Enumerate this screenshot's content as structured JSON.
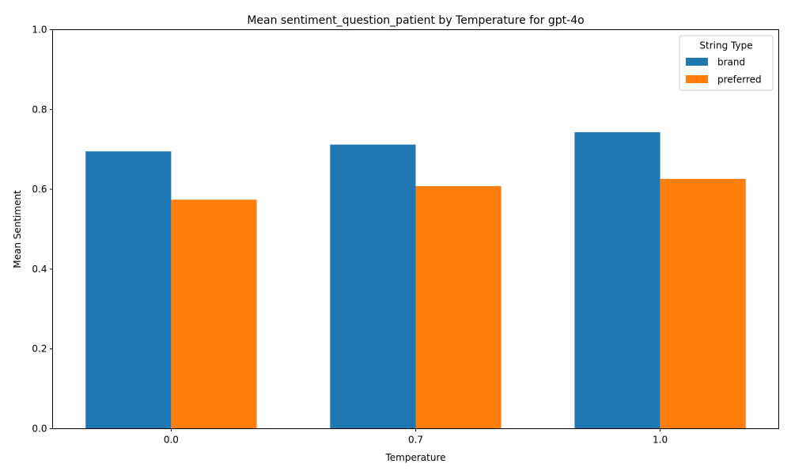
{
  "chart_data": {
    "type": "bar",
    "title": "Mean sentiment_question_patient by Temperature for gpt-4o",
    "xlabel": "Temperature",
    "ylabel": "Mean Sentiment",
    "categories": [
      "0.0",
      "0.7",
      "1.0"
    ],
    "ylim": [
      0,
      1.0
    ],
    "yticks": [
      "0.0",
      "0.2",
      "0.4",
      "0.6",
      "0.8",
      "1.0"
    ],
    "grid": false,
    "legend": {
      "title": "String Type",
      "placement": "top-right"
    },
    "series": [
      {
        "name": "brand",
        "color": "#1f77b4",
        "values": [
          0.695,
          0.712,
          0.743
        ]
      },
      {
        "name": "preferred",
        "color": "#ff7f0e",
        "values": [
          0.574,
          0.608,
          0.626
        ]
      }
    ]
  }
}
